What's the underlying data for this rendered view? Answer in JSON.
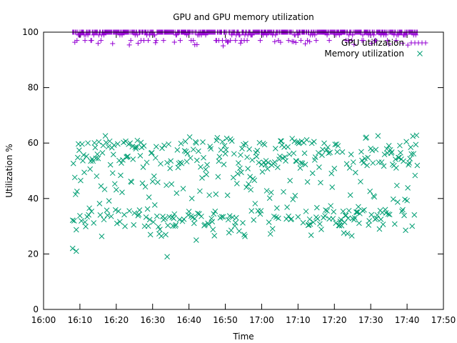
{
  "chart_data": {
    "type": "scatter",
    "title": "GPU and GPU memory utilization",
    "xlabel": "Time",
    "ylabel": "Utilization %",
    "xlim": [
      "16:00",
      "17:50"
    ],
    "ylim": [
      0,
      100
    ],
    "x_ticks": [
      "16:00",
      "16:10",
      "16:20",
      "16:30",
      "16:40",
      "16:50",
      "17:00",
      "17:10",
      "17:20",
      "17:30",
      "17:40",
      "17:50"
    ],
    "y_ticks": [
      0,
      20,
      40,
      60,
      80,
      100
    ],
    "legend_position": "top-right",
    "series": [
      {
        "name": "GPU utilization",
        "marker": "plus",
        "color": "#9400d3",
        "time_range": [
          "16:08",
          "17:43"
        ],
        "sample_interval_min": 0.2,
        "value_range": [
          95,
          100
        ],
        "typical_value": 100
      },
      {
        "name": "Memory utilization",
        "marker": "cross",
        "color": "#009e73",
        "time_range": [
          "16:08",
          "17:43"
        ],
        "sample_interval_min": 0.2,
        "value_range": [
          19,
          65
        ],
        "band_range": [
          26,
          63
        ],
        "outliers": [
          {
            "x": "16:08",
            "y": 22
          },
          {
            "x": "16:09",
            "y": 21
          },
          {
            "x": "16:34",
            "y": 19
          },
          {
            "x": "16:42",
            "y": 25
          }
        ]
      }
    ]
  }
}
